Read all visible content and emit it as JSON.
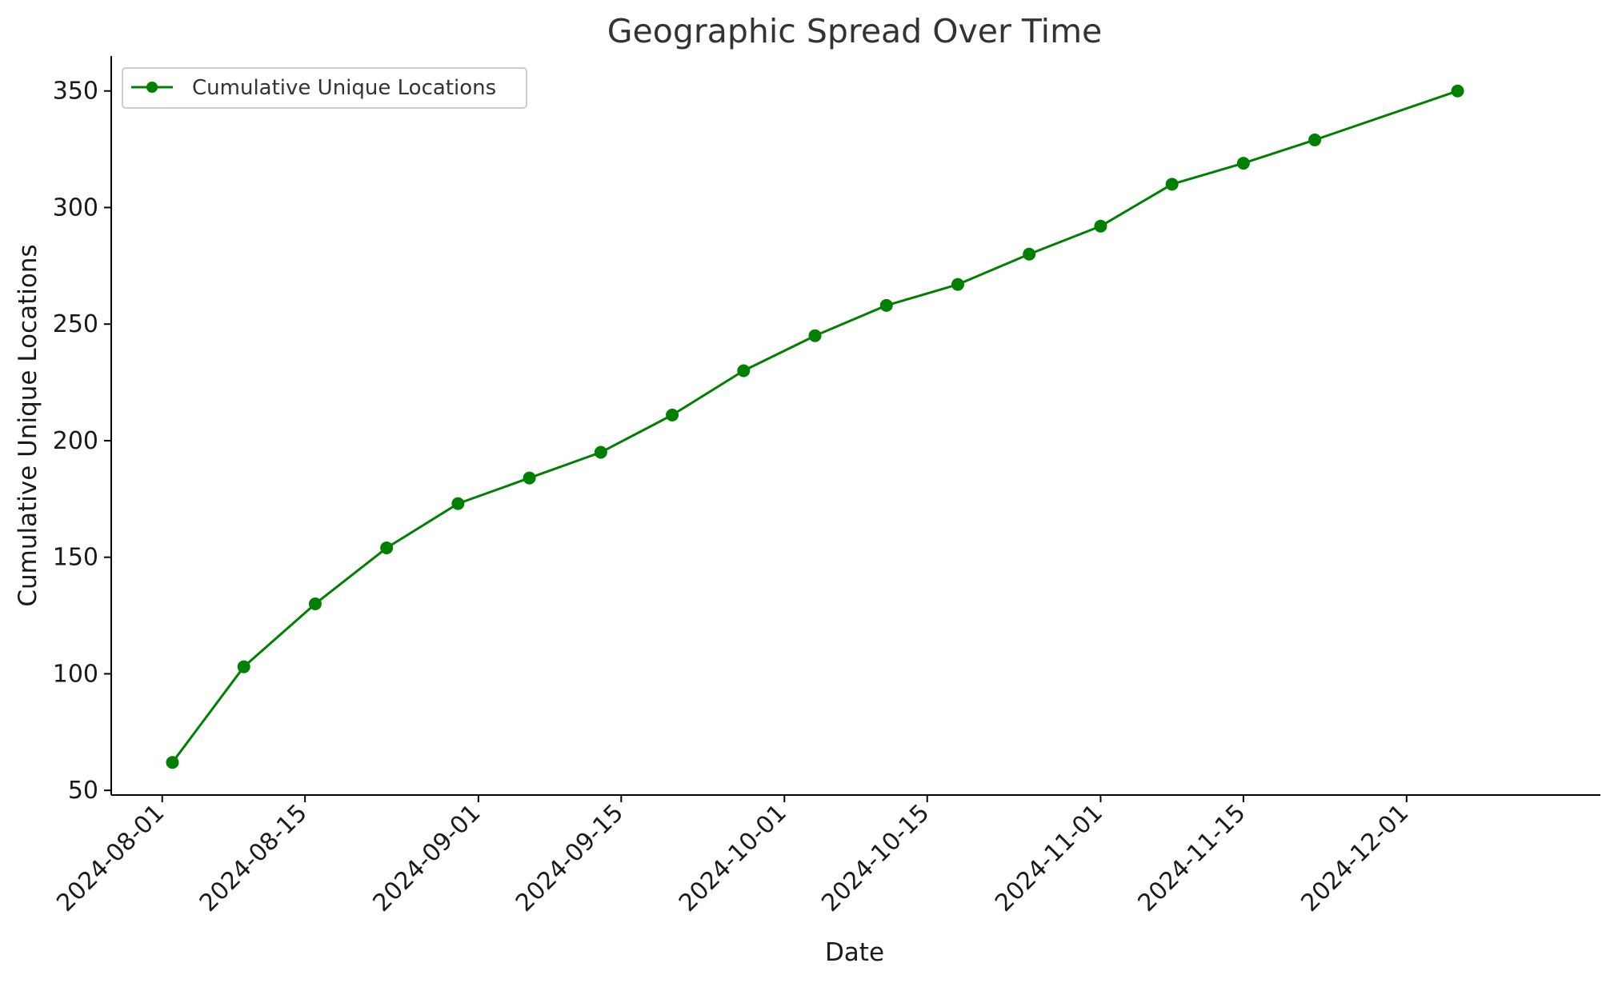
{
  "chart_data": {
    "type": "line",
    "title": "Geographic Spread Over Time",
    "xlabel": "Date",
    "ylabel": "Cumulative Unique Locations",
    "x_ticks": [
      "2024-08-01",
      "2024-08-15",
      "2024-09-01",
      "2024-09-15",
      "2024-10-01",
      "2024-10-15",
      "2024-11-01",
      "2024-11-15",
      "2024-12-01"
    ],
    "y_ticks": [
      50,
      100,
      150,
      200,
      250,
      300,
      350
    ],
    "xlim": [
      "2024-07-27",
      "2024-12-20"
    ],
    "ylim": [
      48,
      365
    ],
    "grid": false,
    "legend_position": "top-left",
    "series": [
      {
        "name": "Cumulative Unique Locations",
        "color": "#008000",
        "marker": "circle",
        "points": [
          {
            "x": "2024-08-02",
            "y": 62
          },
          {
            "x": "2024-08-09",
            "y": 103
          },
          {
            "x": "2024-08-16",
            "y": 130
          },
          {
            "x": "2024-08-23",
            "y": 154
          },
          {
            "x": "2024-08-30",
            "y": 173
          },
          {
            "x": "2024-09-06",
            "y": 184
          },
          {
            "x": "2024-09-13",
            "y": 195
          },
          {
            "x": "2024-09-20",
            "y": 211
          },
          {
            "x": "2024-09-27",
            "y": 230
          },
          {
            "x": "2024-10-04",
            "y": 245
          },
          {
            "x": "2024-10-11",
            "y": 258
          },
          {
            "x": "2024-10-18",
            "y": 267
          },
          {
            "x": "2024-10-25",
            "y": 280
          },
          {
            "x": "2024-11-01",
            "y": 292
          },
          {
            "x": "2024-11-08",
            "y": 310
          },
          {
            "x": "2024-11-15",
            "y": 319
          },
          {
            "x": "2024-11-22",
            "y": 329
          },
          {
            "x": "2024-12-06",
            "y": 350
          }
        ]
      }
    ]
  }
}
